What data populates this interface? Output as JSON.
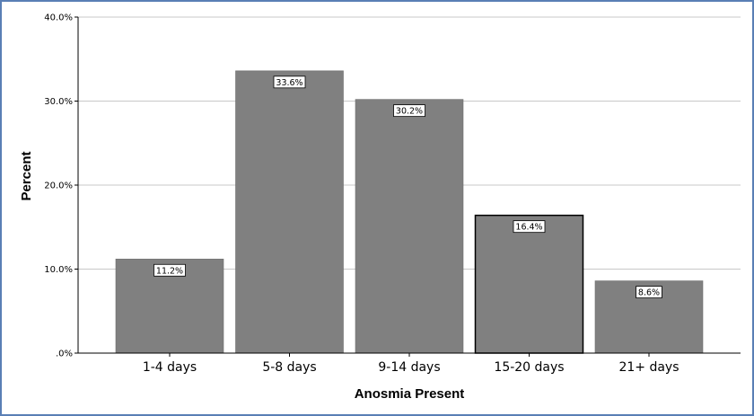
{
  "chart_data": {
    "type": "bar",
    "title": "",
    "xlabel": "Anosmia Present",
    "ylabel": "Percent",
    "categories": [
      "1-4 days",
      "5-8 days",
      "9-14 days",
      "15-20 days",
      "21+ days"
    ],
    "values": [
      11.2,
      33.6,
      30.2,
      16.4,
      8.6
    ],
    "data_labels": [
      "11.2%",
      "33.6%",
      "30.2%",
      "16.4%",
      "8.6%"
    ],
    "ylim": [
      0,
      40
    ],
    "yticks": [
      0,
      10,
      20,
      30,
      40
    ],
    "ytick_labels": [
      ".0%",
      "10.0%",
      "20.0%",
      "30.0%",
      "40.0%"
    ],
    "grid": "horizontal",
    "legend": "none",
    "colors": {
      "bar": "#808080",
      "grid": "#c8c8c8",
      "frame": "#5a7fb5",
      "highlight_outline": "#000000"
    },
    "highlighted_category": "15-20 days"
  }
}
